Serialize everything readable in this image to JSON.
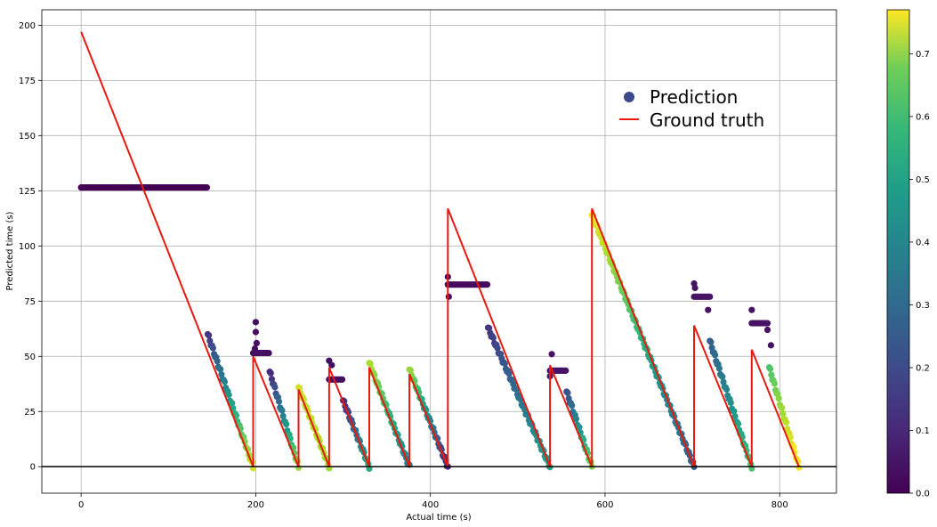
{
  "chart_data": {
    "type": "scatter",
    "xlabel": "Actual time (s)",
    "ylabel": "Predicted time (s)",
    "xlim": [
      -45,
      865
    ],
    "ylim": [
      -12,
      207
    ],
    "x_ticks": [
      0,
      200,
      400,
      600,
      800
    ],
    "y_ticks": [
      0,
      25,
      50,
      75,
      100,
      125,
      150,
      175,
      200
    ],
    "grid": true,
    "hline_y": 0,
    "legend": {
      "position": "upper-right-inside",
      "items": [
        "Prediction",
        "Ground truth"
      ]
    },
    "colors": {
      "ground_truth": "#e8190f",
      "legend_marker": "#3b4a8c",
      "baseline": "#000000"
    },
    "colormap": "viridis",
    "colorbar": {
      "min": 0.0,
      "max": 0.77,
      "ticks": [
        "0.0",
        "0.1",
        "0.2",
        "0.3",
        "0.4",
        "0.5",
        "0.6",
        "0.7"
      ]
    },
    "ground_truth": [
      [
        0,
        197
      ],
      [
        197,
        0
      ],
      [
        197,
        50
      ],
      [
        249,
        0
      ],
      [
        249,
        35
      ],
      [
        284,
        0
      ],
      [
        284,
        45
      ],
      [
        330,
        0
      ],
      [
        330,
        45
      ],
      [
        376,
        0
      ],
      [
        376,
        42
      ],
      [
        420,
        0
      ],
      [
        420,
        117
      ],
      [
        537,
        0
      ],
      [
        537,
        46
      ],
      [
        585,
        0
      ],
      [
        585,
        117
      ],
      [
        702,
        0
      ],
      [
        702,
        64
      ],
      [
        768,
        0
      ],
      [
        768,
        53
      ],
      [
        822,
        0
      ]
    ],
    "prediction_segments": [
      {
        "type": "flat",
        "x0": 0,
        "x1": 145,
        "y": 126.5,
        "c": 0.0
      },
      {
        "type": "ramp",
        "x0": 145,
        "y0": 60,
        "x1": 197,
        "y1": 0,
        "c0": 0.12,
        "c1": 0.72
      },
      {
        "type": "flat",
        "x0": 197,
        "x1": 216,
        "y": 51.5,
        "c": 0.03,
        "spikes": [
          [
            200,
            65.5
          ],
          [
            200,
            61
          ],
          [
            201,
            56
          ],
          [
            199,
            53.5
          ]
        ]
      },
      {
        "type": "ramp",
        "x0": 216,
        "y0": 43,
        "x1": 249,
        "y1": 0,
        "c0": 0.08,
        "c1": 0.65
      },
      {
        "type": "ramp",
        "x0": 249,
        "y0": 36,
        "x1": 284,
        "y1": 0,
        "c0": 0.72,
        "c1": 0.66
      },
      {
        "type": "flat",
        "x0": 284,
        "x1": 300,
        "y": 39.5,
        "c": 0.03,
        "spikes": [
          [
            284,
            48
          ],
          [
            287,
            46
          ]
        ]
      },
      {
        "type": "ramp",
        "x0": 300,
        "y0": 30,
        "x1": 330,
        "y1": 0,
        "c0": 0.08,
        "c1": 0.48
      },
      {
        "type": "ramp",
        "x0": 330,
        "y0": 47,
        "x1": 376,
        "y1": 0,
        "c0": 0.68,
        "c1": 0.32
      },
      {
        "type": "ramp",
        "x0": 376,
        "y0": 44,
        "x1": 420,
        "y1": 0,
        "c0": 0.66,
        "c1": 0.08
      },
      {
        "type": "flat",
        "x0": 420,
        "x1": 466,
        "y": 82.5,
        "c": 0.02,
        "spikes": [
          [
            420,
            86
          ],
          [
            421,
            77
          ]
        ]
      },
      {
        "type": "ramp",
        "x0": 466,
        "y0": 63,
        "x1": 537,
        "y1": 0,
        "c0": 0.12,
        "c1": 0.45
      },
      {
        "type": "flat",
        "x0": 537,
        "x1": 556,
        "y": 43.5,
        "c": 0.04,
        "spikes": [
          [
            539,
            51
          ],
          [
            537,
            41
          ]
        ]
      },
      {
        "type": "ramp",
        "x0": 556,
        "y0": 34,
        "x1": 585,
        "y1": 0,
        "c0": 0.18,
        "c1": 0.62
      },
      {
        "type": "ramp",
        "x0": 585,
        "y0": 114,
        "x1": 702,
        "y1": 0,
        "c0": 0.76,
        "c1": 0.22
      },
      {
        "type": "flat",
        "x0": 702,
        "x1": 720,
        "y": 77,
        "c": 0.04,
        "spikes": [
          [
            702,
            83
          ],
          [
            703,
            81
          ],
          [
            718,
            71
          ]
        ]
      },
      {
        "type": "ramp",
        "x0": 720,
        "y0": 57,
        "x1": 768,
        "y1": 0,
        "c0": 0.22,
        "c1": 0.55
      },
      {
        "type": "flat",
        "x0": 768,
        "x1": 786,
        "y": 65,
        "c": 0.04,
        "spikes": [
          [
            768,
            71
          ],
          [
            786,
            62
          ],
          [
            790,
            55
          ]
        ]
      },
      {
        "type": "ramp",
        "x0": 788,
        "y0": 45,
        "x1": 822,
        "y1": 0,
        "c0": 0.55,
        "c1": 0.8
      }
    ]
  }
}
